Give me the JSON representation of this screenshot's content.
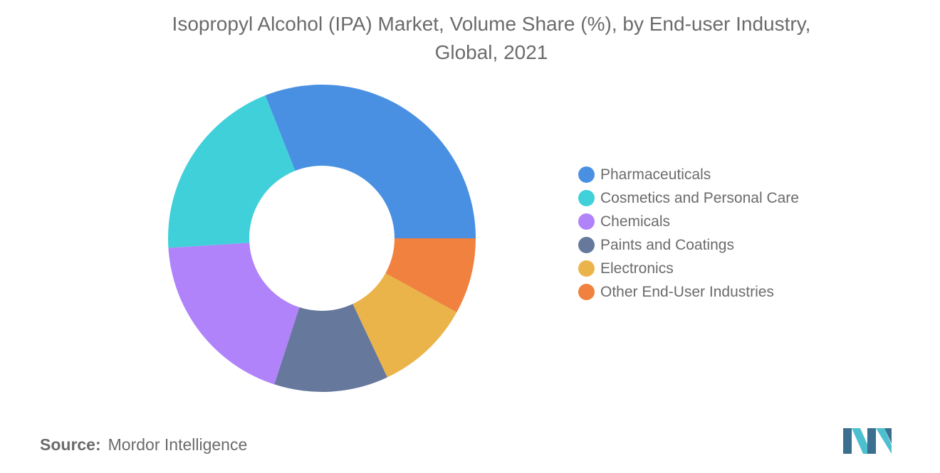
{
  "chart_data": {
    "type": "pie",
    "title": "Isopropyl Alcohol (IPA) Market, Volume Share (%), by End-user Industry,",
    "subtitle": "Global, 2021",
    "legend_position": "right",
    "donut": true,
    "categories": [
      "Pharmaceuticals",
      "Cosmetics and Personal Care",
      "Chemicals",
      "Paints and Coatings",
      "Electronics",
      "Other End-User Industries"
    ],
    "values": [
      31,
      20,
      19,
      12,
      10,
      8
    ],
    "colors": [
      "#4a90e2",
      "#40d0da",
      "#b083fa",
      "#66789c",
      "#ebb44a",
      "#f0813f"
    ]
  },
  "source": {
    "label": "Source:",
    "text": "Mordor Intelligence"
  },
  "logo": {
    "icon": "mordor-intelligence-logo-icon",
    "colors": [
      "#3b6f8f",
      "#4dc0d0"
    ]
  }
}
